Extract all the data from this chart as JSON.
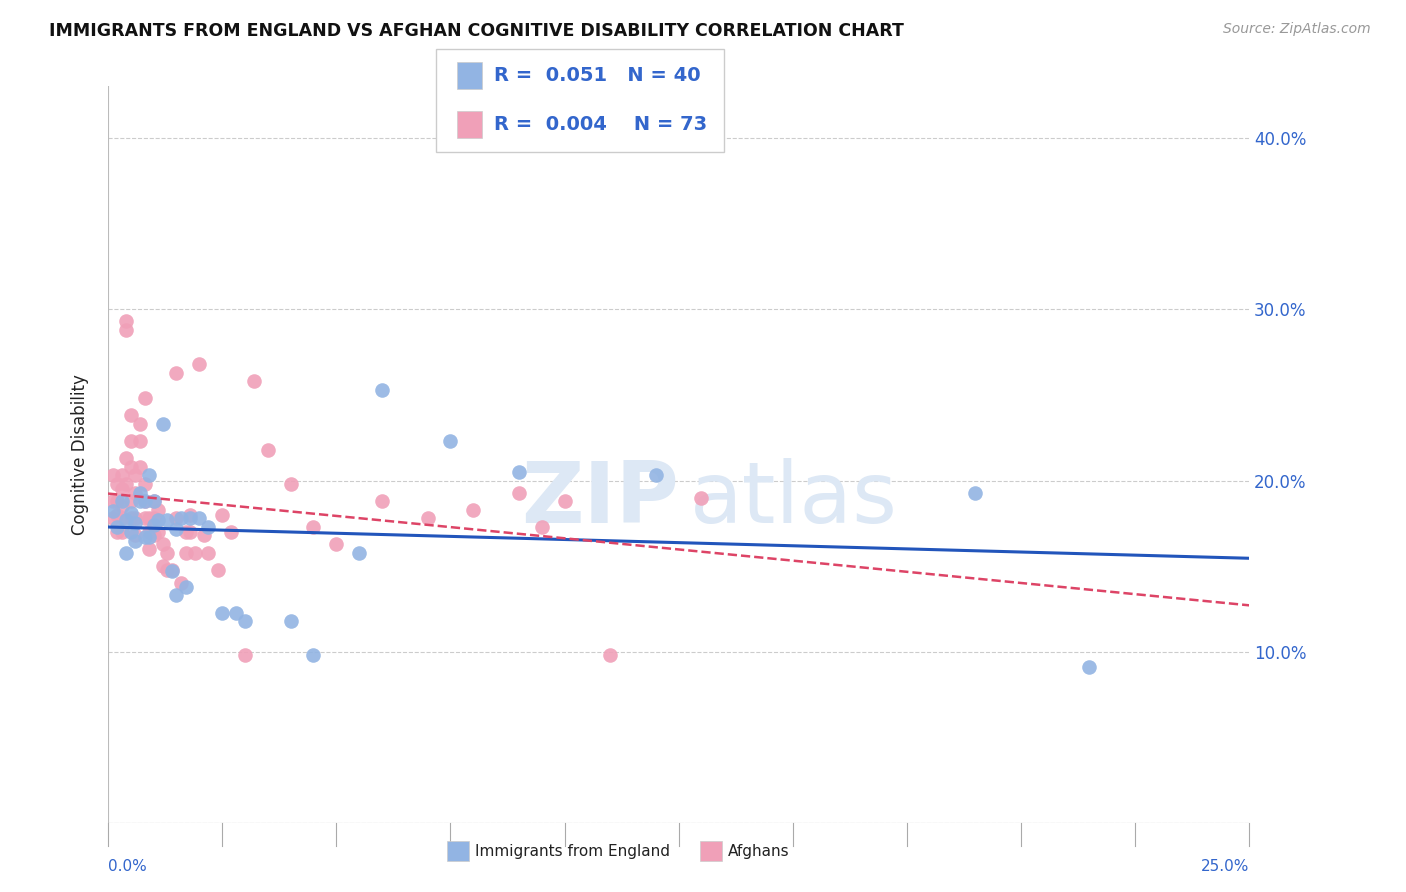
{
  "title": "IMMIGRANTS FROM ENGLAND VS AFGHAN COGNITIVE DISABILITY CORRELATION CHART",
  "source": "Source: ZipAtlas.com",
  "ylabel": "Cognitive Disability",
  "yticks": [
    0.0,
    0.1,
    0.2,
    0.3,
    0.4
  ],
  "ytick_labels": [
    "",
    "10.0%",
    "20.0%",
    "30.0%",
    "40.0%"
  ],
  "xlim": [
    0.0,
    0.25
  ],
  "ylim": [
    0.0,
    0.43
  ],
  "legend_r_england": "0.051",
  "legend_n_england": "40",
  "legend_r_afghan": "0.004",
  "legend_n_afghan": "73",
  "color_england": "#92b4e3",
  "color_afghan": "#f0a0b8",
  "trendline_england_color": "#2255bb",
  "trendline_afghan_color": "#dd4466",
  "england_points_x": [
    0.001,
    0.002,
    0.003,
    0.004,
    0.004,
    0.005,
    0.005,
    0.006,
    0.006,
    0.007,
    0.007,
    0.008,
    0.008,
    0.009,
    0.009,
    0.01,
    0.01,
    0.011,
    0.012,
    0.013,
    0.014,
    0.015,
    0.015,
    0.016,
    0.017,
    0.018,
    0.02,
    0.022,
    0.025,
    0.028,
    0.03,
    0.04,
    0.045,
    0.055,
    0.06,
    0.075,
    0.09,
    0.12,
    0.19,
    0.215
  ],
  "england_points_y": [
    0.182,
    0.173,
    0.188,
    0.177,
    0.158,
    0.181,
    0.17,
    0.175,
    0.165,
    0.188,
    0.193,
    0.167,
    0.188,
    0.203,
    0.167,
    0.174,
    0.188,
    0.177,
    0.233,
    0.177,
    0.147,
    0.172,
    0.133,
    0.178,
    0.138,
    0.178,
    0.178,
    0.173,
    0.123,
    0.123,
    0.118,
    0.118,
    0.098,
    0.158,
    0.253,
    0.223,
    0.205,
    0.203,
    0.193,
    0.091
  ],
  "afghan_points_x": [
    0.001,
    0.001,
    0.001,
    0.002,
    0.002,
    0.002,
    0.002,
    0.003,
    0.003,
    0.003,
    0.003,
    0.003,
    0.004,
    0.004,
    0.004,
    0.004,
    0.005,
    0.005,
    0.005,
    0.005,
    0.005,
    0.006,
    0.006,
    0.006,
    0.006,
    0.007,
    0.007,
    0.007,
    0.008,
    0.008,
    0.008,
    0.008,
    0.009,
    0.009,
    0.009,
    0.01,
    0.01,
    0.01,
    0.011,
    0.011,
    0.012,
    0.012,
    0.013,
    0.013,
    0.014,
    0.015,
    0.015,
    0.016,
    0.017,
    0.017,
    0.018,
    0.018,
    0.019,
    0.02,
    0.021,
    0.022,
    0.024,
    0.025,
    0.027,
    0.03,
    0.032,
    0.035,
    0.04,
    0.045,
    0.05,
    0.06,
    0.07,
    0.08,
    0.09,
    0.095,
    0.1,
    0.11,
    0.13
  ],
  "afghan_points_y": [
    0.203,
    0.188,
    0.178,
    0.198,
    0.188,
    0.18,
    0.17,
    0.203,
    0.195,
    0.185,
    0.178,
    0.17,
    0.288,
    0.293,
    0.213,
    0.198,
    0.238,
    0.223,
    0.208,
    0.188,
    0.178,
    0.203,
    0.193,
    0.178,
    0.168,
    0.233,
    0.223,
    0.208,
    0.248,
    0.198,
    0.188,
    0.178,
    0.178,
    0.17,
    0.16,
    0.188,
    0.178,
    0.168,
    0.183,
    0.17,
    0.163,
    0.15,
    0.158,
    0.148,
    0.148,
    0.263,
    0.178,
    0.14,
    0.17,
    0.158,
    0.18,
    0.17,
    0.158,
    0.268,
    0.168,
    0.158,
    0.148,
    0.18,
    0.17,
    0.098,
    0.258,
    0.218,
    0.198,
    0.173,
    0.163,
    0.188,
    0.178,
    0.183,
    0.193,
    0.173,
    0.188,
    0.098,
    0.19
  ],
  "watermark_zip": "ZIP",
  "watermark_atlas": "atlas",
  "background_color": "#ffffff",
  "grid_color": "#cccccc",
  "value_color": "#3366cc",
  "label_color": "#222222"
}
